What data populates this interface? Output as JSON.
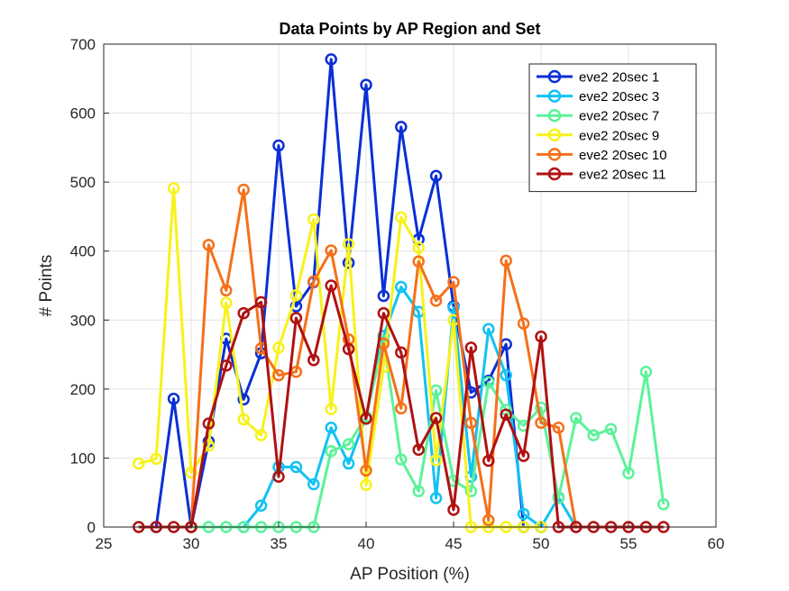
{
  "chart_data": {
    "type": "line",
    "title": "Data Points by AP Region and Set",
    "xlabel": "AP Position (%)",
    "ylabel": "# Points",
    "xlim": [
      25,
      60
    ],
    "ylim": [
      0,
      700
    ],
    "xticks": [
      "25",
      "30",
      "35",
      "40",
      "45",
      "50",
      "55",
      "60"
    ],
    "yticks": [
      "0",
      "100",
      "200",
      "300",
      "400",
      "500",
      "600",
      "700"
    ],
    "grid": true,
    "legend_position": "top-right",
    "series": [
      {
        "name": "eve2 20sec 1",
        "color": "#0a2fd6",
        "x": [
          28,
          29,
          30,
          31,
          32,
          33,
          34,
          35,
          36,
          37,
          38,
          39,
          40,
          41,
          42,
          43,
          44,
          45,
          46,
          47,
          48,
          49,
          50
        ],
        "y": [
          0,
          186,
          0,
          124,
          273,
          185,
          252,
          553,
          320,
          355,
          678,
          383,
          641,
          335,
          580,
          417,
          509,
          320,
          195,
          212,
          265,
          0,
          0
        ]
      },
      {
        "name": "eve2 20sec 3",
        "color": "#12c2f2",
        "x": [
          33,
          34,
          35,
          36,
          37,
          38,
          39,
          40,
          41,
          42,
          43,
          44,
          45,
          46,
          47,
          48,
          49,
          50,
          51,
          52
        ],
        "y": [
          0,
          31,
          87,
          87,
          62,
          144,
          92,
          160,
          277,
          348,
          312,
          42,
          318,
          73,
          287,
          220,
          19,
          0,
          43,
          0
        ]
      },
      {
        "name": "eve2 20sec 7",
        "color": "#5cf29a",
        "x": [
          30,
          31,
          32,
          33,
          34,
          35,
          36,
          37,
          38,
          39,
          40,
          41,
          42,
          43,
          44,
          45,
          46,
          47,
          48,
          49,
          50,
          51,
          52,
          53,
          54,
          55,
          56,
          57
        ],
        "y": [
          0,
          0,
          0,
          0,
          0,
          0,
          0,
          0,
          110,
          120,
          160,
          270,
          98,
          52,
          198,
          67,
          52,
          210,
          170,
          147,
          173,
          42,
          158,
          133,
          142,
          78,
          225,
          33
        ]
      },
      {
        "name": "eve2 20sec 9",
        "color": "#f7f21a",
        "x": [
          27,
          28,
          29,
          30,
          31,
          32,
          33,
          34,
          35,
          36,
          37,
          38,
          39,
          40,
          41,
          42,
          43,
          44,
          45,
          46,
          47,
          48,
          49,
          50
        ],
        "y": [
          92,
          99,
          491,
          79,
          118,
          325,
          156,
          133,
          260,
          336,
          446,
          171,
          410,
          61,
          232,
          449,
          405,
          97,
          300,
          0,
          0,
          0,
          0,
          0
        ]
      },
      {
        "name": "eve2 20sec 10",
        "color": "#f5701a",
        "x": [
          30,
          31,
          32,
          33,
          34,
          35,
          36,
          37,
          38,
          39,
          40,
          41,
          42,
          43,
          44,
          45,
          46,
          47,
          48,
          49,
          50,
          51,
          52
        ],
        "y": [
          0,
          409,
          343,
          489,
          259,
          220,
          225,
          356,
          401,
          272,
          82,
          266,
          172,
          385,
          328,
          355,
          151,
          10,
          386,
          295,
          151,
          144,
          0
        ]
      },
      {
        "name": "eve2 20sec 11",
        "color": "#b01111",
        "x": [
          27,
          28,
          29,
          30,
          31,
          32,
          33,
          34,
          35,
          36,
          37,
          38,
          39,
          40,
          41,
          42,
          43,
          44,
          45,
          46,
          47,
          48,
          49,
          50,
          51,
          52,
          53,
          54,
          55,
          56,
          57
        ],
        "y": [
          0,
          0,
          0,
          0,
          150,
          234,
          310,
          326,
          73,
          303,
          242,
          350,
          258,
          157,
          310,
          253,
          112,
          158,
          25,
          260,
          96,
          163,
          103,
          276,
          0,
          0,
          0,
          0,
          0,
          0,
          0
        ]
      }
    ]
  }
}
